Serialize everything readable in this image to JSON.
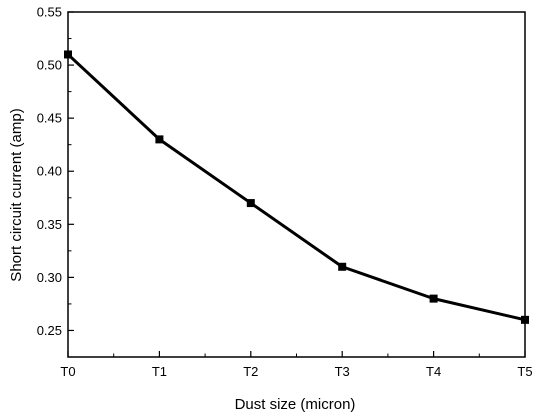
{
  "chart_data": {
    "type": "line",
    "xlabel": "Dust size (micron)",
    "ylabel": "Short circuit current (amp)",
    "categories": [
      "T0",
      "T1",
      "T2",
      "T3",
      "T4",
      "T5"
    ],
    "series": [
      {
        "values": [
          0.51,
          0.43,
          0.37,
          0.31,
          0.28,
          0.26
        ]
      }
    ],
    "ylim": [
      0.225,
      0.55
    ],
    "yticks": [
      "0.25",
      "0.30",
      "0.35",
      "0.40",
      "0.45",
      "0.50",
      "0.55"
    ],
    "grid": false,
    "legend": "none",
    "marker": "square",
    "line_color": "#000000"
  }
}
